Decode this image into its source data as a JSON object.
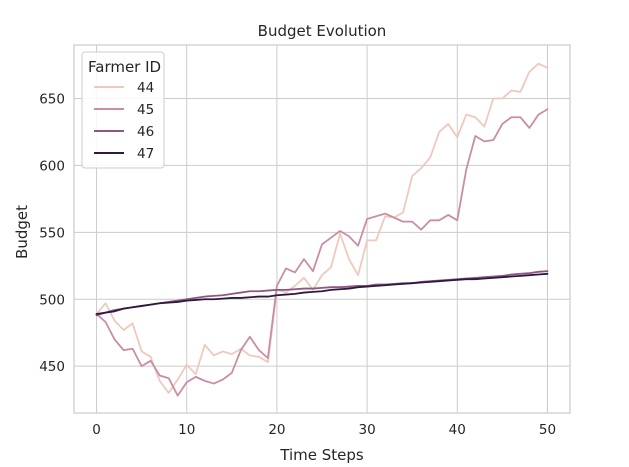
{
  "chart_data": {
    "type": "line",
    "title": "Budget Evolution",
    "xlabel": "Time Steps",
    "ylabel": "Budget",
    "xlim": [
      -2.5,
      52.5
    ],
    "ylim": [
      415,
      690
    ],
    "x_ticks": [
      0,
      10,
      20,
      30,
      40,
      50
    ],
    "y_ticks": [
      450,
      500,
      550,
      600,
      650
    ],
    "grid": true,
    "legend": {
      "title": "Farmer ID",
      "placement": "top-left"
    },
    "x": [
      0,
      1,
      2,
      3,
      4,
      5,
      6,
      7,
      8,
      9,
      10,
      11,
      12,
      13,
      14,
      15,
      16,
      17,
      18,
      19,
      20,
      21,
      22,
      23,
      24,
      25,
      26,
      27,
      28,
      29,
      30,
      31,
      32,
      33,
      34,
      35,
      36,
      37,
      38,
      39,
      40,
      41,
      42,
      43,
      44,
      45,
      46,
      47,
      48,
      49,
      50
    ],
    "series": [
      {
        "name": "44",
        "color": "#efc9bd",
        "values": [
          489,
          497,
          484,
          477,
          482,
          461,
          457,
          439,
          430,
          440,
          451,
          444,
          466,
          458,
          461,
          459,
          463,
          458,
          457,
          453,
          507,
          505,
          510,
          516,
          507,
          518,
          524,
          549,
          530,
          518,
          544,
          544,
          562,
          561,
          565,
          592,
          598,
          606,
          625,
          631,
          621,
          638,
          636,
          629,
          650,
          650,
          656,
          655,
          670,
          676,
          673
        ]
      },
      {
        "name": "45",
        "color": "#c98ea5",
        "values": [
          489,
          483,
          470,
          462,
          463,
          450,
          454,
          443,
          441,
          428,
          438,
          442,
          439,
          437,
          440,
          445,
          462,
          472,
          462,
          456,
          510,
          523,
          520,
          530,
          521,
          541,
          546,
          551,
          547,
          540,
          560,
          562,
          564,
          561,
          558,
          558,
          552,
          559,
          559,
          563,
          559,
          597,
          622,
          618,
          619,
          631,
          636,
          636,
          628,
          638,
          642
        ]
      },
      {
        "name": "46",
        "color": "#8f5682",
        "values": [
          488,
          490,
          492,
          493,
          494,
          495,
          496,
          497,
          498,
          499,
          500,
          501,
          502,
          502.5,
          503,
          504,
          505,
          506,
          506,
          506.5,
          507,
          507,
          507.5,
          508,
          508,
          508.5,
          509,
          509,
          509.5,
          510,
          510,
          511,
          511,
          511.5,
          512,
          512,
          513,
          513.5,
          514,
          514.5,
          515,
          515.5,
          516,
          516.5,
          517,
          517.5,
          518.5,
          519,
          519.5,
          520.5,
          521
        ]
      },
      {
        "name": "47",
        "color": "#2d1a3f",
        "values": [
          489,
          490,
          491,
          493,
          494,
          495,
          496,
          497,
          497.5,
          498,
          499,
          499.5,
          500,
          500,
          500.5,
          501,
          501,
          501.5,
          502,
          502,
          503,
          503.5,
          504,
          505,
          505.5,
          506,
          507,
          507.5,
          508,
          509,
          509.5,
          510,
          510.5,
          511,
          511.5,
          512,
          512.5,
          513,
          513.5,
          514,
          514.5,
          515,
          515,
          515.5,
          516,
          516.5,
          517,
          517.5,
          518,
          518.5,
          519
        ]
      }
    ]
  }
}
